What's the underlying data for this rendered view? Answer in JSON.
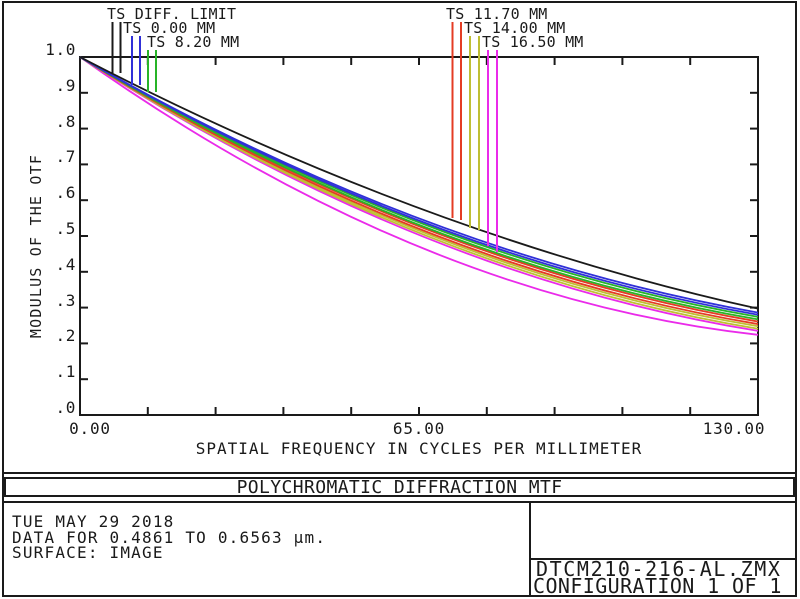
{
  "window": {
    "background_color": "#ffffff",
    "border_color": "#1a1a1a"
  },
  "chart_data": {
    "type": "line",
    "title": "POLYCHROMATIC DIFFRACTION MTF",
    "xlabel": "SPATIAL FREQUENCY IN CYCLES PER MILLIMETER",
    "ylabel": "MODULUS OF THE OTF",
    "xlim": [
      0,
      130
    ],
    "ylim": [
      0.0,
      1.0
    ],
    "grid": false,
    "legend_position": "top-inline-vertical-markers",
    "xticks": [
      0,
      65,
      130
    ],
    "xtick_labels": [
      "0.00",
      "65.00",
      "130.00"
    ],
    "ytick_labels": [
      "1.0",
      ".9",
      ".8",
      ".7",
      ".6",
      ".5",
      ".4",
      ".3",
      ".2",
      ".1",
      ".0"
    ],
    "x_samples": [
      0,
      65,
      130
    ],
    "series": [
      {
        "name": "TS DIFF. LIMIT",
        "color": "#1a1a1a",
        "curves": [
          [
            1.0,
            0.578,
            0.297
          ]
        ]
      },
      {
        "name": "TS 0.00 MM",
        "color": "#3030d8",
        "curves": [
          [
            1.0,
            0.549,
            0.286
          ],
          [
            1.0,
            0.543,
            0.28
          ]
        ]
      },
      {
        "name": "TS 8.20 MM",
        "color": "#28b428",
        "curves": [
          [
            1.0,
            0.538,
            0.274
          ],
          [
            1.0,
            0.531,
            0.267
          ]
        ]
      },
      {
        "name": "TS 11.70 MM",
        "color": "#e43c24",
        "curves": [
          [
            1.0,
            0.527,
            0.261
          ],
          [
            1.0,
            0.52,
            0.254
          ]
        ]
      },
      {
        "name": "TS 14.00 MM",
        "color": "#bfbf34",
        "curves": [
          [
            1.0,
            0.515,
            0.248
          ],
          [
            1.0,
            0.509,
            0.241
          ]
        ]
      },
      {
        "name": "TS 16.50 MM",
        "color": "#ea2bea",
        "curves": [
          [
            1.0,
            0.503,
            0.235
          ],
          [
            1.0,
            0.47,
            0.224
          ]
        ]
      }
    ]
  },
  "footer": {
    "date_line": "TUE MAY 29 2018",
    "data_line": "DATA FOR 0.4861 TO 0.6563 µm.",
    "surface_line": "SURFACE: IMAGE",
    "file_name": "DTCM210-216-AL.ZMX",
    "configuration": "CONFIGURATION 1 OF 1"
  }
}
